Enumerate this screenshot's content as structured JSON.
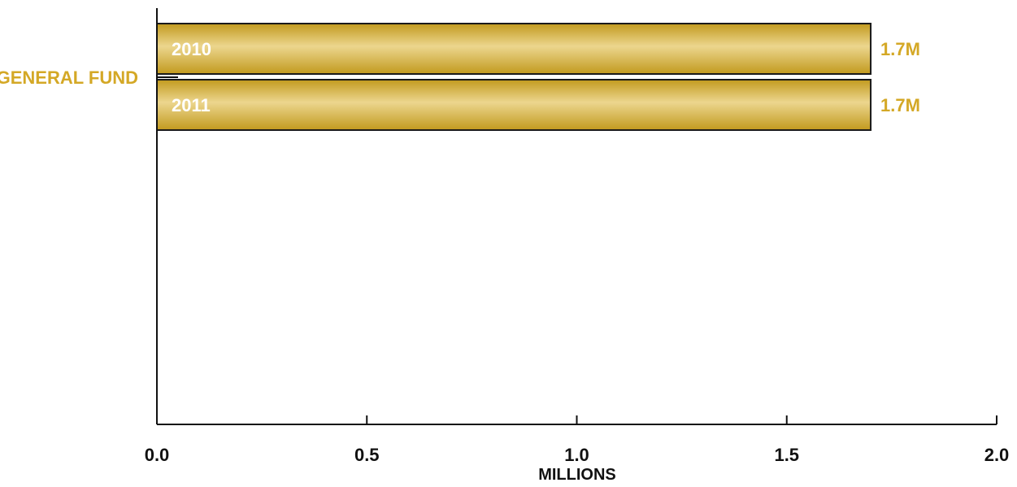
{
  "chart_data": {
    "type": "bar",
    "orientation": "horizontal",
    "categories": [
      "GENERAL FUND"
    ],
    "series": [
      {
        "name": "2010",
        "values": [
          1.7
        ],
        "value_label": "1.7M"
      },
      {
        "name": "2011",
        "values": [
          1.7
        ],
        "value_label": "1.7M"
      }
    ],
    "xlabel": "MILLIONS",
    "ylabel": "",
    "xlim": [
      0.0,
      2.0
    ],
    "x_ticks": [
      "0.0",
      "0.5",
      "1.0",
      "1.5",
      "2.0"
    ],
    "grid": false,
    "colors": {
      "bar_fill": "#c9a227",
      "bar_highlight": "#e9d58c",
      "bar_outline": "#1a1a1a",
      "category_text": "#d4a826",
      "value_text": "#d4a826",
      "axis": "#111111"
    }
  }
}
